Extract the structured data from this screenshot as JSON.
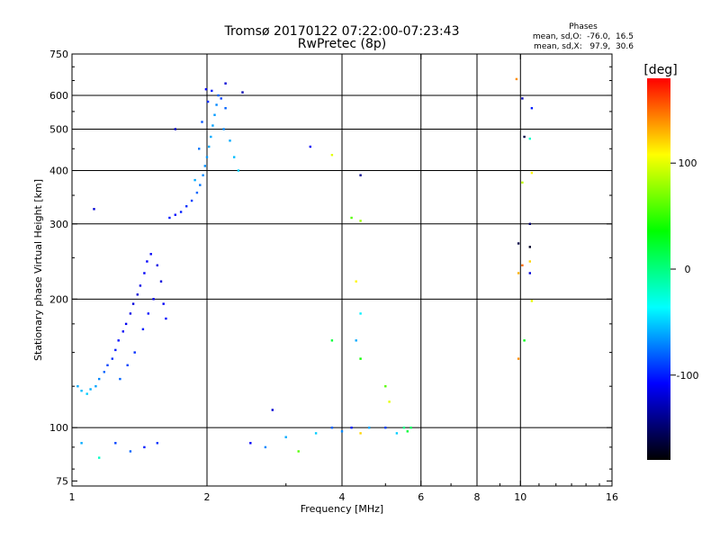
{
  "chart_data": {
    "type": "scatter",
    "title": "Tromsø 20170122 07:22:00-07:23:43",
    "subtitle": "RwPretec (8p)",
    "xlabel": "Frequency [MHz]",
    "ylabel": "Stationary phase Virtual Height [km]",
    "x_scale": "log",
    "y_scale": "log",
    "xlim": [
      1,
      16
    ],
    "ylim": [
      73,
      750
    ],
    "x_ticks": [
      1,
      2,
      4,
      6,
      8,
      10,
      16
    ],
    "x_tick_labels": [
      "1",
      "2",
      "4",
      "6",
      "8",
      "10",
      "16"
    ],
    "y_ticks": [
      75,
      100,
      200,
      300,
      400,
      500,
      600,
      750
    ],
    "y_tick_labels": [
      "75",
      "100",
      "200",
      "300",
      "400",
      "500",
      "600",
      "750"
    ],
    "x_gridlines": [
      2,
      4,
      6,
      8,
      10
    ],
    "y_gridlines": [
      100,
      200,
      300,
      400,
      500,
      600
    ],
    "grid": true,
    "stats": {
      "heading": "Phases",
      "line_o": "mean, sd,O:  -76.0,  16.5",
      "line_x": "mean, sd,X:   97.9,  30.6"
    },
    "colorbar": {
      "label": "[deg]",
      "range": [
        -180,
        180
      ],
      "ticks": [
        100,
        0,
        -100
      ],
      "tick_labels": [
        "100",
        "0",
        "-100"
      ],
      "palette": [
        "#ff0000",
        "#ffff00",
        "#00ff00",
        "#00ffff",
        "#0000ff",
        "#000000"
      ]
    },
    "series": [
      {
        "trace": "low-F region (~1.0–1.6 MHz, 120–260 km)",
        "points": [
          [
            1.03,
            125,
            -60
          ],
          [
            1.05,
            122,
            -55
          ],
          [
            1.08,
            120,
            -50
          ],
          [
            1.1,
            123,
            -58
          ],
          [
            1.13,
            125,
            -62
          ],
          [
            1.15,
            130,
            -70
          ],
          [
            1.18,
            135,
            -80
          ],
          [
            1.2,
            140,
            -90
          ],
          [
            1.23,
            145,
            -95
          ],
          [
            1.25,
            152,
            -100
          ],
          [
            1.27,
            160,
            -105
          ],
          [
            1.3,
            168,
            -110
          ],
          [
            1.32,
            175,
            -112
          ],
          [
            1.35,
            185,
            -115
          ],
          [
            1.37,
            195,
            -118
          ],
          [
            1.4,
            205,
            -120
          ],
          [
            1.42,
            215,
            -115
          ],
          [
            1.45,
            230,
            -110
          ],
          [
            1.47,
            245,
            -108
          ],
          [
            1.5,
            255,
            -110
          ],
          [
            1.55,
            240,
            -115
          ],
          [
            1.58,
            220,
            -118
          ],
          [
            1.6,
            195,
            -110
          ],
          [
            1.62,
            180,
            -105
          ],
          [
            1.52,
            200,
            -112
          ],
          [
            1.48,
            185,
            -105
          ],
          [
            1.44,
            170,
            -100
          ],
          [
            1.38,
            150,
            -95
          ],
          [
            1.33,
            140,
            -90
          ],
          [
            1.28,
            130,
            -80
          ]
        ]
      },
      {
        "trace": "upper-F region (~1.6–2.4 MHz, 300–640 km)",
        "points": [
          [
            1.65,
            310,
            -100
          ],
          [
            1.7,
            315,
            -105
          ],
          [
            1.75,
            320,
            -100
          ],
          [
            1.8,
            330,
            -95
          ],
          [
            1.85,
            340,
            -90
          ],
          [
            1.9,
            355,
            -80
          ],
          [
            1.93,
            370,
            -75
          ],
          [
            1.96,
            390,
            -70
          ],
          [
            1.98,
            410,
            -68
          ],
          [
            2.0,
            430,
            -65
          ],
          [
            2.02,
            455,
            -60
          ],
          [
            2.04,
            480,
            -60
          ],
          [
            2.06,
            510,
            -62
          ],
          [
            2.08,
            540,
            -65
          ],
          [
            2.1,
            570,
            -70
          ],
          [
            2.12,
            600,
            -80
          ],
          [
            1.99,
            620,
            -110
          ],
          [
            2.05,
            615,
            -100
          ],
          [
            2.15,
            590,
            -90
          ],
          [
            2.2,
            560,
            -80
          ],
          [
            2.18,
            500,
            -70
          ],
          [
            2.25,
            470,
            -60
          ],
          [
            2.3,
            430,
            -55
          ],
          [
            2.35,
            400,
            -50
          ],
          [
            1.88,
            380,
            -60
          ],
          [
            1.92,
            450,
            -75
          ],
          [
            1.95,
            520,
            -85
          ],
          [
            2.01,
            580,
            -95
          ],
          [
            2.2,
            640,
            -120
          ],
          [
            2.4,
            610,
            -130
          ],
          [
            1.7,
            500,
            -125
          ],
          [
            1.12,
            325,
            -120
          ]
        ]
      },
      {
        "trace": "E region scatter (~1–6 MHz, 85–110 km)",
        "points": [
          [
            1.05,
            92,
            -60
          ],
          [
            1.15,
            85,
            -20
          ],
          [
            1.25,
            92,
            -90
          ],
          [
            1.35,
            88,
            -80
          ],
          [
            1.45,
            90,
            -100
          ],
          [
            1.55,
            92,
            -95
          ],
          [
            2.5,
            92,
            -110
          ],
          [
            2.7,
            90,
            -70
          ],
          [
            3.0,
            95,
            -60
          ],
          [
            3.2,
            88,
            60
          ],
          [
            3.5,
            97,
            -50
          ],
          [
            3.8,
            100,
            -80
          ],
          [
            4.0,
            98,
            -70
          ],
          [
            4.2,
            100,
            -100
          ],
          [
            4.4,
            97,
            120
          ],
          [
            4.6,
            100,
            -60
          ],
          [
            5.0,
            100,
            -90
          ],
          [
            5.3,
            97,
            -50
          ],
          [
            5.5,
            100,
            0
          ],
          [
            5.6,
            98,
            20
          ],
          [
            5.7,
            100,
            10
          ]
        ]
      },
      {
        "trace": "sparse scatter (~3–11 MHz)",
        "points": [
          [
            2.8,
            110,
            -120
          ],
          [
            3.4,
            455,
            -110
          ],
          [
            3.8,
            435,
            100
          ],
          [
            4.4,
            390,
            -140
          ],
          [
            4.2,
            310,
            60
          ],
          [
            4.4,
            305,
            80
          ],
          [
            4.3,
            220,
            110
          ],
          [
            4.4,
            185,
            -40
          ],
          [
            3.8,
            160,
            20
          ],
          [
            4.3,
            160,
            -60
          ],
          [
            4.4,
            145,
            40
          ],
          [
            5.0,
            125,
            60
          ],
          [
            5.1,
            115,
            100
          ],
          [
            9.8,
            655,
            140
          ],
          [
            10.1,
            590,
            -130
          ],
          [
            10.2,
            480,
            -160
          ],
          [
            10.5,
            475,
            -20
          ],
          [
            10.6,
            560,
            -100
          ],
          [
            10.6,
            395,
            110
          ],
          [
            10.1,
            375,
            90
          ],
          [
            10.5,
            300,
            -150
          ],
          [
            9.9,
            270,
            -160
          ],
          [
            10.5,
            265,
            -170
          ],
          [
            10.1,
            240,
            150
          ],
          [
            9.9,
            230,
            130
          ],
          [
            10.5,
            245,
            120
          ],
          [
            10.5,
            230,
            -120
          ],
          [
            10.6,
            198,
            100
          ],
          [
            9.9,
            145,
            140
          ],
          [
            10.2,
            160,
            30
          ]
        ]
      }
    ]
  }
}
